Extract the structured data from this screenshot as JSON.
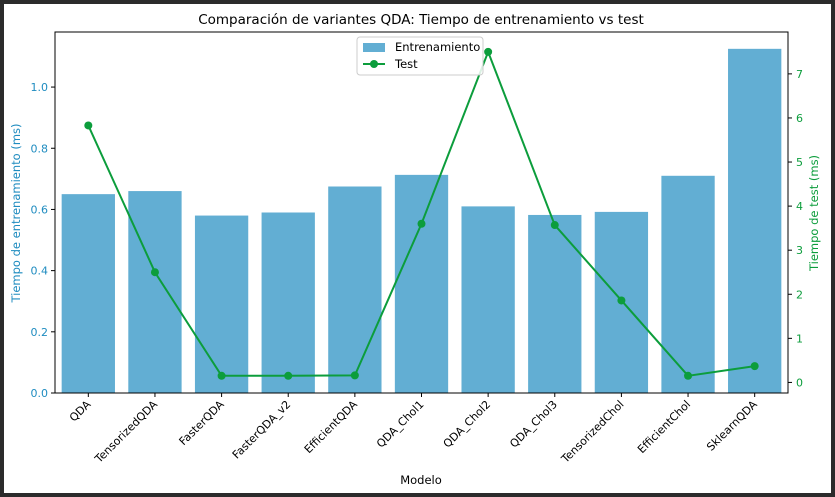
{
  "chart_data": {
    "type": "bar",
    "title": "Comparación de variantes QDA: Tiempo de entrenamiento vs test",
    "xlabel": "Modelo",
    "ylabel_left": "Tiempo de entrenamiento (ms)",
    "ylabel_right": "Tiempo de test (ms)",
    "categories": [
      "QDA",
      "TensorizedQDA",
      "FasterQDA",
      "FasterQDA_v2",
      "EfficientQDA",
      "QDA_Chol1",
      "QDA_Chol2",
      "QDA_Chol3",
      "TensorizedChol",
      "EfficientChol",
      "SklearnQDA"
    ],
    "series": [
      {
        "name": "Entrenamiento",
        "type": "bar",
        "axis": "left",
        "color": "#62aed3",
        "values": [
          0.65,
          0.66,
          0.58,
          0.59,
          0.675,
          0.713,
          0.61,
          0.582,
          0.592,
          0.71,
          1.125
        ]
      },
      {
        "name": "Test",
        "type": "line",
        "axis": "right",
        "color": "#0c9d3c",
        "values": [
          5.83,
          2.5,
          0.15,
          0.15,
          0.16,
          3.6,
          7.5,
          3.57,
          1.86,
          0.15,
          0.37
        ]
      }
    ],
    "ylim_left": [
      0,
      1.18
    ],
    "ylim_right": [
      -0.24,
      7.95
    ],
    "yticks_left": [
      "0.0",
      "0.2",
      "0.4",
      "0.6",
      "0.8",
      "1.0"
    ],
    "yticks_right": [
      "0",
      "1",
      "2",
      "3",
      "4",
      "5",
      "6",
      "7"
    ],
    "legend_position": "upper-center",
    "grid": false,
    "left_axis_color": "#1f8cc0",
    "right_axis_color": "#0c9d3c"
  }
}
